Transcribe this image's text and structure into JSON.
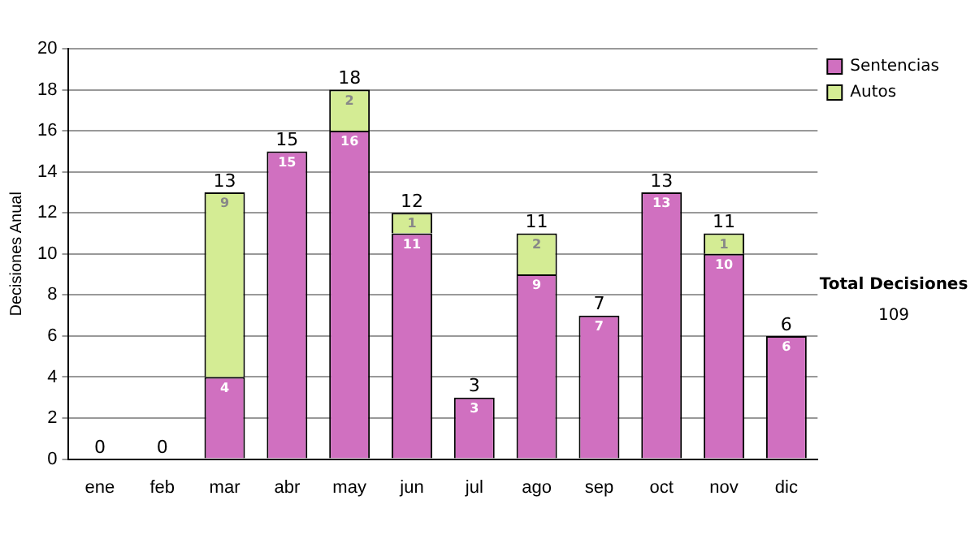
{
  "chart_data": {
    "type": "bar",
    "stacked": true,
    "ylabel": "Decisiones Anual",
    "categories": [
      "ene",
      "feb",
      "mar",
      "abr",
      "may",
      "jun",
      "jul",
      "ago",
      "sep",
      "oct",
      "nov",
      "dic"
    ],
    "series": [
      {
        "name": "Sentencias",
        "color": "#d070c0",
        "values": [
          0,
          0,
          4,
          15,
          16,
          11,
          3,
          9,
          7,
          13,
          10,
          6
        ],
        "value_labels": [
          null,
          null,
          "4",
          "15",
          "16",
          "11",
          "3",
          "9",
          "7",
          "13",
          "10",
          "6"
        ]
      },
      {
        "name": "Autos",
        "color": "#d4ec94",
        "values": [
          0,
          0,
          9,
          0,
          2,
          1,
          0,
          2,
          0,
          0,
          1,
          0
        ],
        "value_labels": [
          null,
          null,
          "9",
          null,
          "2",
          "1",
          null,
          "2",
          null,
          null,
          "1",
          null
        ]
      }
    ],
    "totals": [
      "0",
      "0",
      "13",
      "15",
      "18",
      "12",
      "3",
      "11",
      "7",
      "13",
      "11",
      "6"
    ],
    "ylim": [
      0,
      20
    ],
    "yticks": [
      0,
      2,
      4,
      6,
      8,
      10,
      12,
      14,
      16,
      18,
      20
    ],
    "grid": "y",
    "legend": "right",
    "annotations": [
      "Total Decisiones",
      "109"
    ]
  }
}
